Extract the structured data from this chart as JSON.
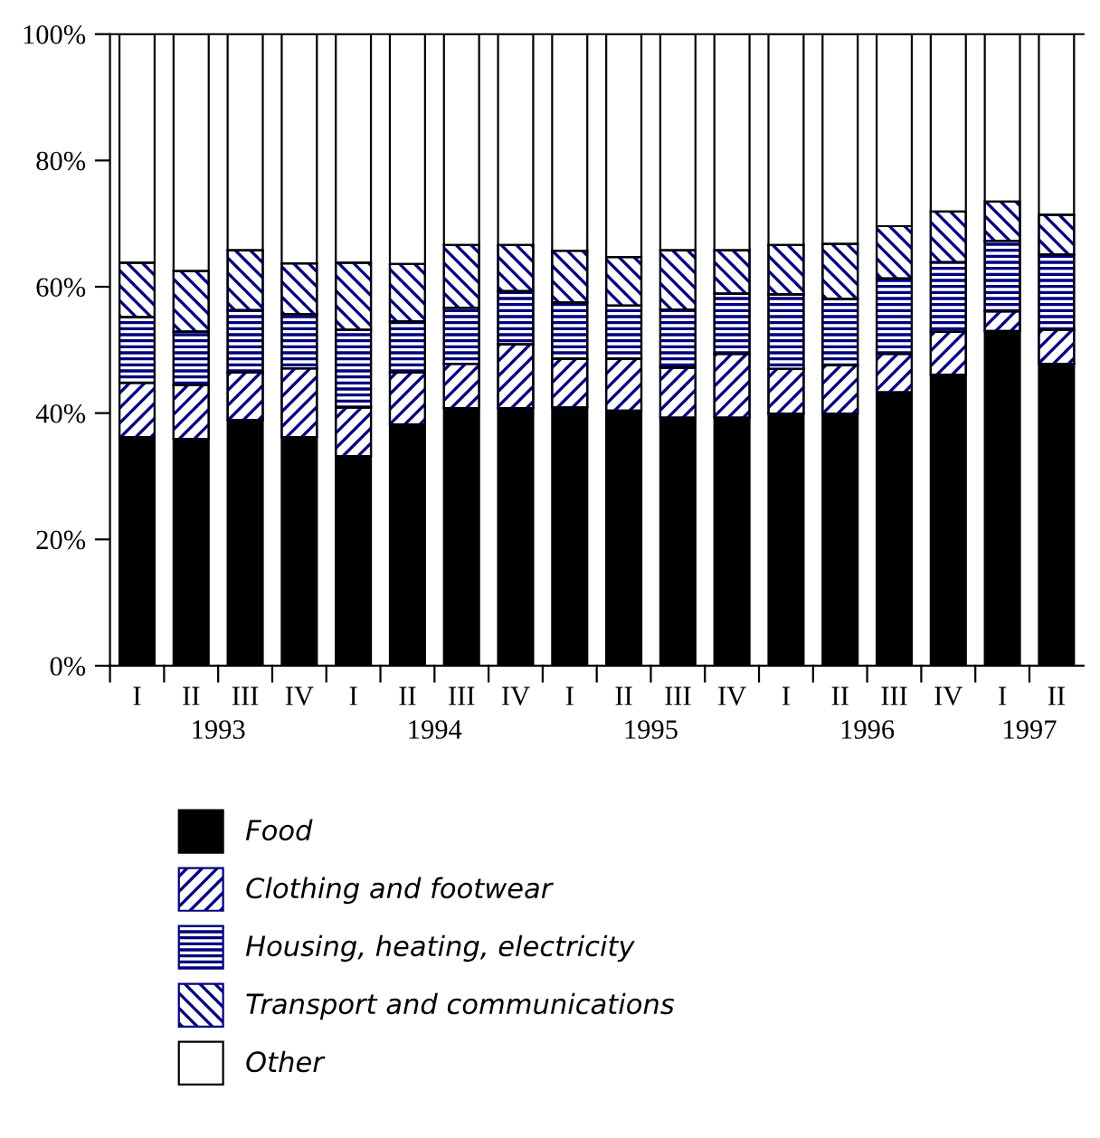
{
  "chart_data": {
    "type": "bar",
    "stacked": true,
    "categories": [
      "I",
      "II",
      "III",
      "IV",
      "I",
      "II",
      "III",
      "IV",
      "I",
      "II",
      "III",
      "IV",
      "I",
      "II",
      "III",
      "IV",
      "I",
      "II"
    ],
    "annotations": [
      "1993",
      "1994",
      "1995",
      "1996",
      "1997"
    ],
    "series": [
      {
        "name": "Food",
        "color": "#000000",
        "values": [
          36.2,
          35.9,
          38.9,
          36.2,
          33.2,
          38.2,
          40.8,
          40.8,
          40.9,
          40.4,
          39.3,
          39.3,
          39.9,
          39.9,
          43.3,
          46.1,
          53.0,
          47.8
        ]
      },
      {
        "name": "Clothing and footwear",
        "color": "#000080",
        "values": [
          8.6,
          8.5,
          7.5,
          10.9,
          7.7,
          8.2,
          7.0,
          10.1,
          7.7,
          8.2,
          7.9,
          10.1,
          7.1,
          7.7,
          6.1,
          6.8,
          3.1,
          5.4
        ]
      },
      {
        "name": "Housing, heating, electricity",
        "color": "#000080",
        "values": [
          10.4,
          8.5,
          9.9,
          8.6,
          12.3,
          8.1,
          8.9,
          8.4,
          8.9,
          8.4,
          9.2,
          9.5,
          11.8,
          10.5,
          11.9,
          11.0,
          11.2,
          11.9
        ]
      },
      {
        "name": "Transport and communications",
        "color": "#000080",
        "values": [
          8.6,
          9.6,
          9.5,
          8.0,
          10.6,
          9.1,
          9.9,
          7.3,
          8.2,
          7.7,
          9.4,
          6.9,
          7.8,
          8.7,
          8.3,
          8.0,
          6.2,
          6.3
        ]
      },
      {
        "name": "Other",
        "color": "#ffffff",
        "values": [
          36.2,
          37.5,
          34.2,
          36.3,
          36.2,
          36.4,
          33.4,
          33.4,
          34.3,
          35.3,
          34.2,
          34.2,
          33.4,
          33.2,
          30.4,
          28.1,
          26.5,
          28.6
        ]
      }
    ],
    "ylim": [
      0,
      100
    ],
    "yticks": [
      {
        "value": 0,
        "label": "0%"
      },
      {
        "value": 20,
        "label": "20%"
      },
      {
        "value": 40,
        "label": "40%"
      },
      {
        "value": 60,
        "label": "60%"
      },
      {
        "value": 80,
        "label": "80%"
      },
      {
        "value": 100,
        "label": "100%"
      }
    ],
    "grid": false,
    "legend": "bottom"
  }
}
